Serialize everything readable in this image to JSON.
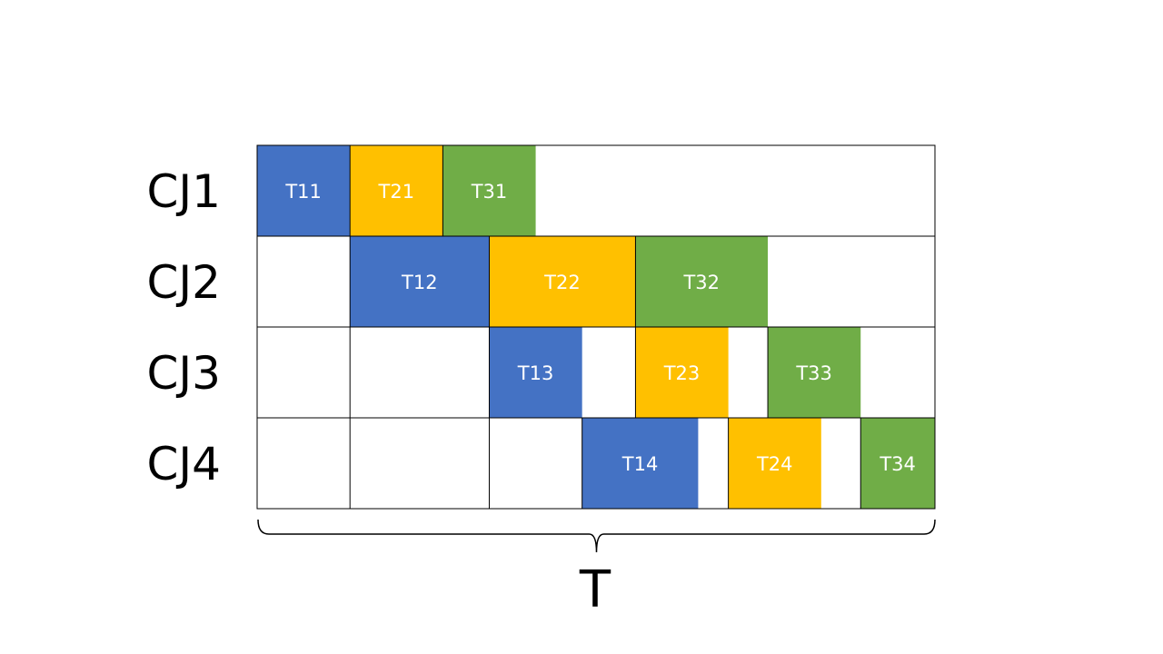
{
  "colors": {
    "blue": "#4472c4",
    "yellow": "#ffc000",
    "green": "#70ad47",
    "line": "#000000",
    "background": "#ffffff"
  },
  "rows": [
    "CJ1",
    "CJ2",
    "CJ3",
    "CJ4"
  ],
  "tasks": [
    {
      "label": "T11",
      "row": 0,
      "start": 0,
      "end": 2,
      "color": "blue"
    },
    {
      "label": "T21",
      "row": 0,
      "start": 2,
      "end": 4,
      "color": "yellow"
    },
    {
      "label": "T31",
      "row": 0,
      "start": 4,
      "end": 6,
      "color": "green"
    },
    {
      "label": "T12",
      "row": 1,
      "start": 2,
      "end": 5,
      "color": "blue"
    },
    {
      "label": "T22",
      "row": 1,
      "start": 5,
      "end": 8.15,
      "color": "yellow"
    },
    {
      "label": "T32",
      "row": 1,
      "start": 8.15,
      "end": 11,
      "color": "green"
    },
    {
      "label": "T13",
      "row": 2,
      "start": 5,
      "end": 7,
      "color": "blue"
    },
    {
      "label": "T23",
      "row": 2,
      "start": 8.15,
      "end": 10.15,
      "color": "yellow"
    },
    {
      "label": "T33",
      "row": 2,
      "start": 11,
      "end": 13,
      "color": "green"
    },
    {
      "label": "T14",
      "row": 3,
      "start": 7,
      "end": 9.5,
      "color": "blue"
    },
    {
      "label": "T24",
      "row": 3,
      "start": 10.15,
      "end": 12.15,
      "color": "yellow"
    },
    {
      "label": "T34",
      "row": 3,
      "start": 13,
      "end": 14.6,
      "color": "green"
    }
  ],
  "time_extent": 14.6,
  "axis_label": "T"
}
